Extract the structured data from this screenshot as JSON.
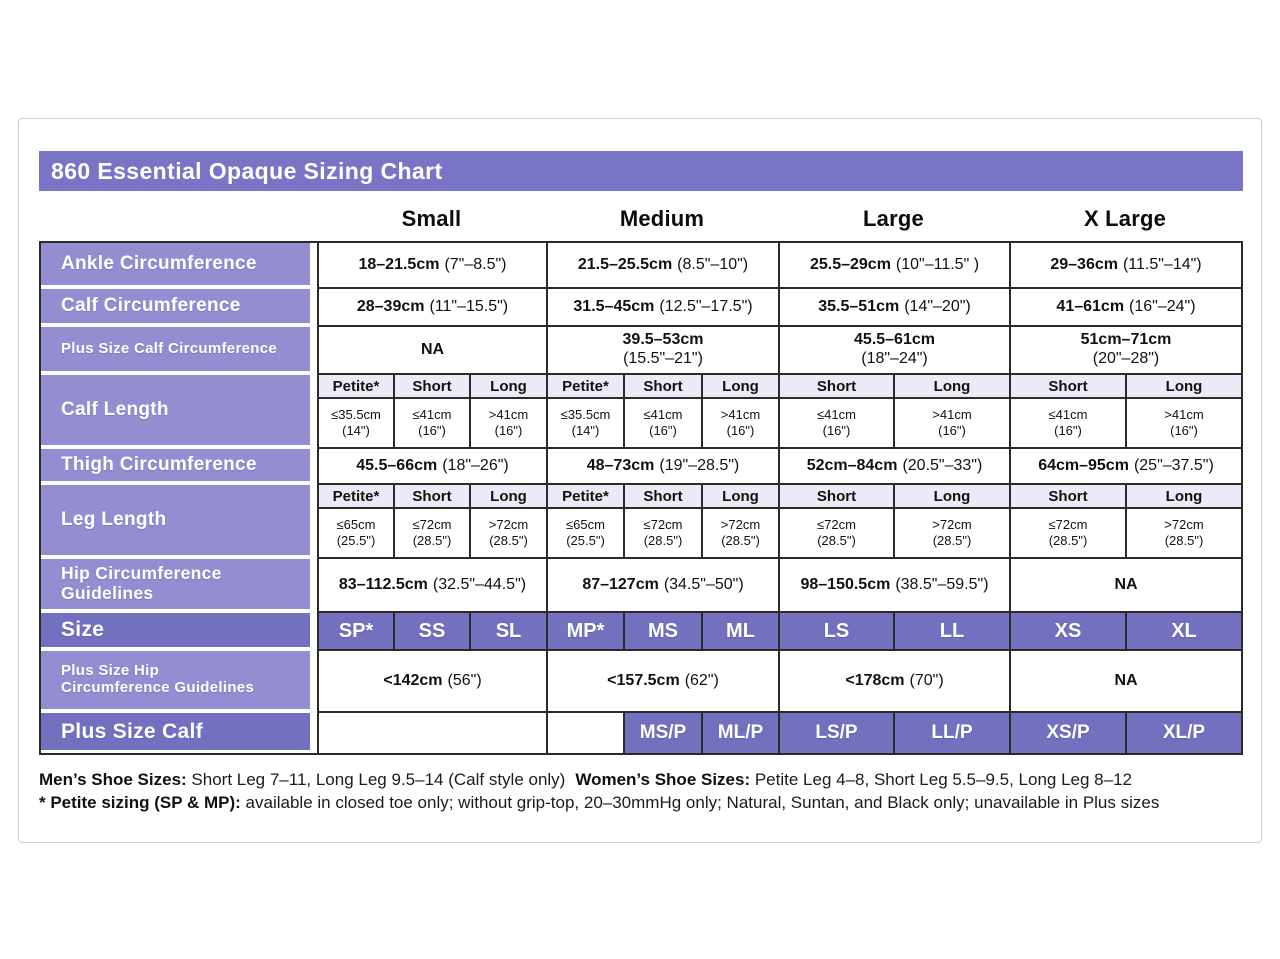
{
  "colors": {
    "title_bg": "#7a74c6",
    "label_bg": "#928ed1",
    "accent_bg": "#7370bf",
    "subhead_bg": "#eceaf6",
    "border": "#2b2b2b"
  },
  "title": "860 Essential Opaque Sizing Chart",
  "size_headers": [
    "Small",
    "Medium",
    "Large",
    "X Large"
  ],
  "rows": {
    "ankle": {
      "label": "Ankle Circumference",
      "small_cm": "18–21.5cm",
      "small_in": "(7\"–8.5\")",
      "medium_cm": "21.5–25.5cm",
      "medium_in": "(8.5\"–10\")",
      "large_cm": "25.5–29cm",
      "large_in": "(10\"–11.5\" )",
      "xlarge_cm": "29–36cm",
      "xlarge_in": "(11.5\"–14\")"
    },
    "calf": {
      "label": "Calf Circumference",
      "small_cm": "28–39cm",
      "small_in": "(11\"–15.5\")",
      "medium_cm": "31.5–45cm",
      "medium_in": "(12.5\"–17.5\")",
      "large_cm": "35.5–51cm",
      "large_in": "(14\"–20\")",
      "xlarge_cm": "41–61cm",
      "xlarge_in": "(16\"–24\")"
    },
    "plus_calf_circ": {
      "label": "Plus Size Calf Circumference",
      "small": "NA",
      "medium_cm": "39.5–53cm",
      "medium_in": "(15.5\"–21\")",
      "large_cm": "45.5–61cm",
      "large_in": "(18\"–24\")",
      "xlarge_cm": "51cm–71cm",
      "xlarge_in": "(20\"–28\")"
    },
    "calf_length": {
      "label": "Calf Length",
      "heads": [
        "Petite*",
        "Short",
        "Long"
      ],
      "petite_v": "≤35.5cm",
      "petite_in": "(14\")",
      "short_v": "≤41cm",
      "short_in": "(16\")",
      "long_v": ">41cm",
      "long_in": "(16\")"
    },
    "thigh": {
      "label": "Thigh Circumference",
      "small_cm": "45.5–66cm",
      "small_in": "(18\"–26\")",
      "medium_cm": "48–73cm",
      "medium_in": "(19\"–28.5\")",
      "large_cm": "52cm–84cm",
      "large_in": "(20.5\"–33\")",
      "xlarge_cm": "64cm–95cm",
      "xlarge_in": "(25\"–37.5\")"
    },
    "leg_length": {
      "label": "Leg Length",
      "heads": [
        "Petite*",
        "Short",
        "Long"
      ],
      "petite_v": "≤65cm",
      "petite_in": "(25.5\")",
      "short_v": "≤72cm",
      "short_in": "(28.5\")",
      "long_v": ">72cm",
      "long_in": "(28.5\")"
    },
    "hip": {
      "label_line1": "Hip Circumference",
      "label_line2": "Guidelines",
      "small_cm": "83–112.5cm",
      "small_in": "(32.5\"–44.5\")",
      "medium_cm": "87–127cm",
      "medium_in": "(34.5\"–50\")",
      "large_cm": "98–150.5cm",
      "large_in": "(38.5\"–59.5\")",
      "xlarge": "NA"
    },
    "size": {
      "label": "Size",
      "codes": [
        "SP*",
        "SS",
        "SL",
        "MP*",
        "MS",
        "ML",
        "LS",
        "LL",
        "XS",
        "XL"
      ]
    },
    "plus_hip": {
      "label_line1": "Plus Size Hip",
      "label_line2": "Circumference Guidelines",
      "small_cm": "<142cm",
      "small_in": "(56\")",
      "medium_cm": "<157.5cm",
      "medium_in": "(62\")",
      "large_cm": "<178cm",
      "large_in": "(70\")",
      "xlarge": "NA"
    },
    "plus_calf": {
      "label": "Plus Size Calf",
      "codes": [
        "MS/P",
        "ML/P",
        "LS/P",
        "LL/P",
        "XS/P",
        "XL/P"
      ]
    }
  },
  "footnotes": {
    "mens_bold": "Men’s Shoe Sizes:",
    "mens_text": " Short Leg 7–11, Long Leg 9.5–14 (Calf style only)",
    "womens_bold": "Women’s Shoe Sizes:",
    "womens_text": " Petite Leg 4–8,  Short Leg 5.5–9.5, Long Leg 8–12",
    "petite_bold": "* Petite sizing (SP & MP):",
    "petite_text": " available in closed toe only; without grip-top, 20–30mmHg only; Natural, Suntan, and Black only; unavailable in Plus sizes"
  }
}
